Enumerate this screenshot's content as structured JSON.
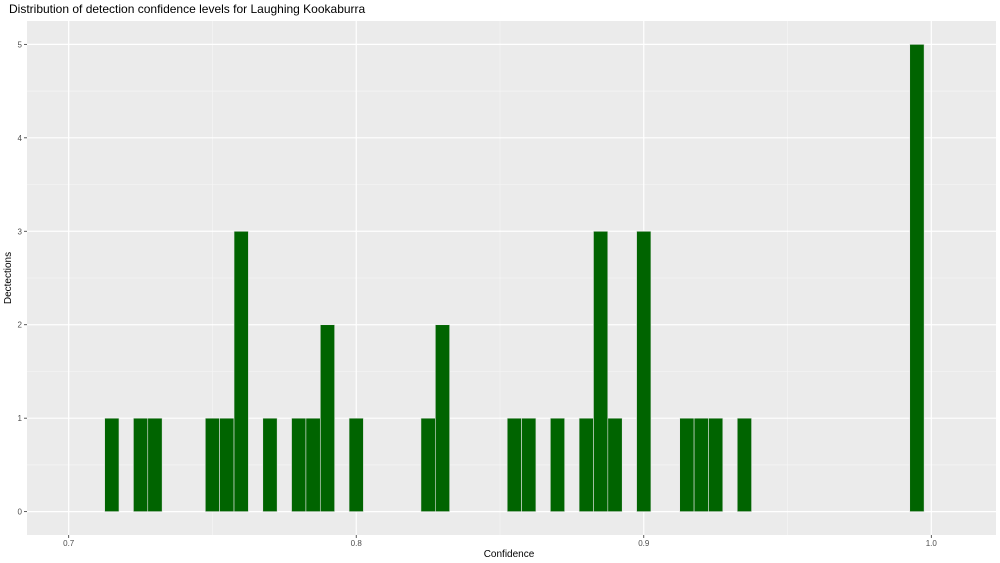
{
  "chart_data": {
    "type": "bar",
    "title": "Distribution of detection confidence levels for Laughing Kookaburra",
    "xlabel": "Confidence",
    "ylabel": "Dectections",
    "xlim": [
      0.6855,
      1.0225
    ],
    "ylim": [
      -0.25,
      5.25
    ],
    "x_ticks": [
      "0.7",
      "0.8",
      "0.9",
      "1.0"
    ],
    "x_tick_values": [
      0.7,
      0.8,
      0.9,
      1.0
    ],
    "y_ticks": [
      "0",
      "1",
      "2",
      "3",
      "4",
      "5"
    ],
    "y_tick_values": [
      0,
      1,
      2,
      3,
      4,
      5
    ],
    "bin_width": 0.005,
    "x": [
      0.715,
      0.725,
      0.73,
      0.75,
      0.755,
      0.76,
      0.77,
      0.78,
      0.785,
      0.79,
      0.8,
      0.825,
      0.83,
      0.855,
      0.86,
      0.87,
      0.88,
      0.885,
      0.89,
      0.9,
      0.915,
      0.92,
      0.925,
      0.935,
      0.995
    ],
    "values": [
      1,
      1,
      1,
      1,
      1,
      3,
      1,
      1,
      1,
      2,
      1,
      1,
      2,
      1,
      1,
      1,
      1,
      3,
      1,
      3,
      1,
      1,
      1,
      1,
      5
    ],
    "grid": true,
    "legend": "none",
    "colors": {
      "bar_fill": "#006400",
      "bar_outline": "#e6e6e6",
      "panel_background": "#ebebeb",
      "grid_major": "#ffffff",
      "grid_minor": "#f5f5f5"
    }
  }
}
